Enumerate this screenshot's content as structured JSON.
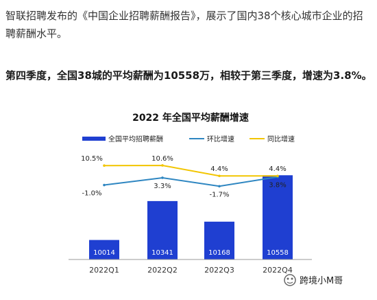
{
  "article": {
    "intro": "智联招聘发布的《中国企业招聘薪酬报告》，展示了国内38个核心城市企业的招聘薪酬水平。",
    "headline": "第四季度，全国38城的平均薪酬为10558万，相较于第三季度，增速为3.8%。"
  },
  "chart_data": {
    "type": "bar",
    "title": "2022 年全国平均薪酬增速",
    "categories": [
      "2022Q1",
      "2022Q2",
      "2022Q3",
      "2022Q4"
    ],
    "series": [
      {
        "name": "全国平均招聘薪酬",
        "kind": "bar",
        "color": "#1f3fd1",
        "values": [
          10014,
          10341,
          10168,
          10558
        ],
        "labels": [
          "10014",
          "10341",
          "10168",
          "10558"
        ]
      },
      {
        "name": "环比增速",
        "kind": "line",
        "color": "#2e86c1",
        "values": [
          -1.0,
          3.3,
          -1.7,
          3.8
        ],
        "labels": [
          "-1.0%",
          "3.3%",
          "-1.7%",
          "3.8%"
        ]
      },
      {
        "name": "同比增速",
        "kind": "line",
        "color": "#f2c500",
        "values": [
          10.5,
          10.6,
          4.4,
          4.4
        ],
        "labels": [
          "10.5%",
          "10.6%",
          "4.4%",
          "4.4%"
        ]
      }
    ],
    "bar_range": [
      9850,
      10600
    ],
    "legend_position": "top",
    "grid": false
  },
  "watermark": {
    "text": "跨境小M哥",
    "icon": "wechat-icon"
  }
}
